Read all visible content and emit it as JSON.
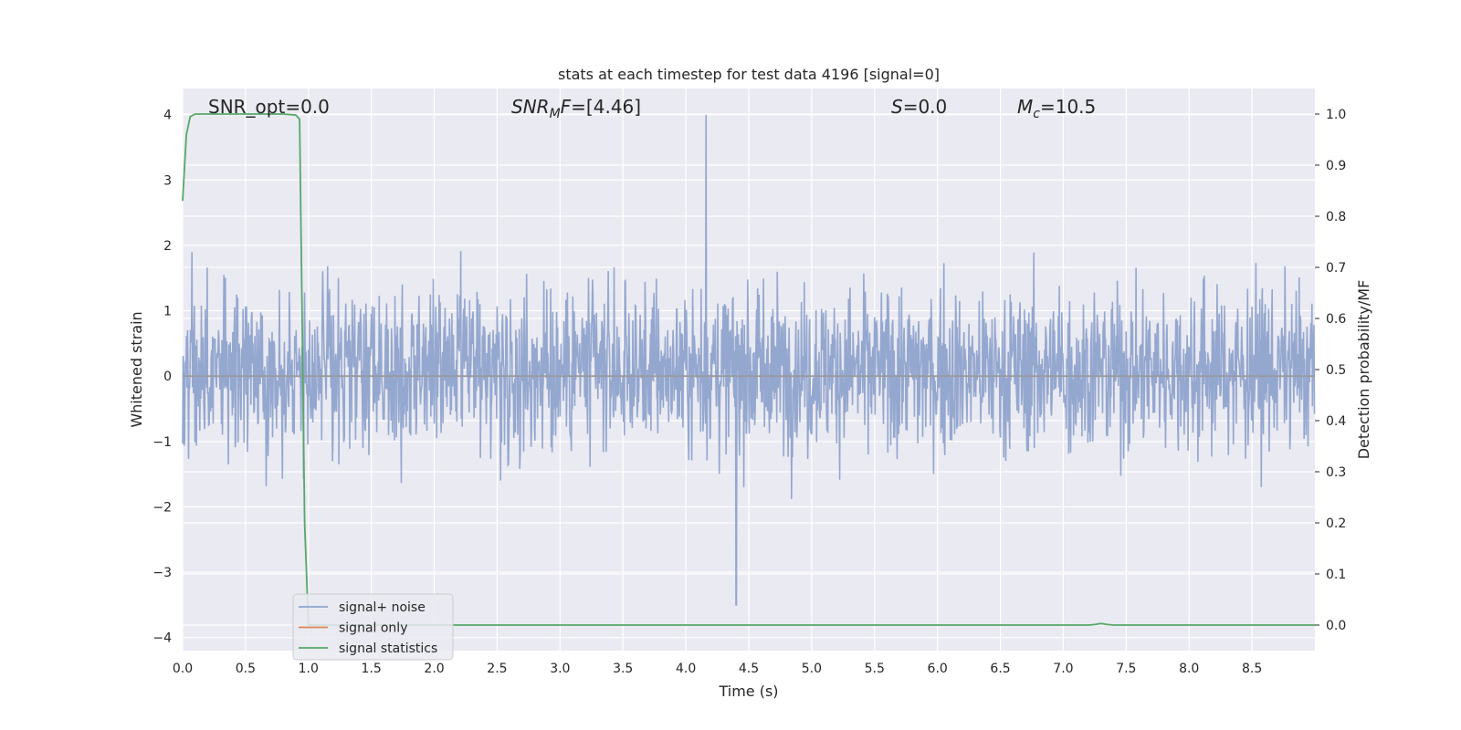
{
  "chart_data": {
    "type": "line",
    "title": "stats at each timestep for test data 4196 [signal=0]",
    "xlabel": "Time (s)",
    "ylabel_left": "Whitened strain",
    "ylabel_right": "Detection probability/MF",
    "xlim": [
      0.0,
      9.0
    ],
    "ylim_left": [
      -4.2,
      4.4
    ],
    "ylim_right": [
      -0.05,
      1.05
    ],
    "x_ticks": [
      "0.0",
      "0.5",
      "1.0",
      "1.5",
      "2.0",
      "2.5",
      "3.0",
      "3.5",
      "4.0",
      "4.5",
      "5.0",
      "5.5",
      "6.0",
      "6.5",
      "7.0",
      "7.5",
      "8.0",
      "8.5"
    ],
    "y_ticks_left": [
      "4",
      "3",
      "2",
      "1",
      "0",
      "−1",
      "−2",
      "−3",
      "−4"
    ],
    "y_ticks_right": [
      "1.0",
      "0.9",
      "0.8",
      "0.7",
      "0.6",
      "0.5",
      "0.4",
      "0.3",
      "0.2",
      "0.1",
      "0.0"
    ],
    "grid": true,
    "annotations": {
      "snr_opt": "SNR_opt=0.0",
      "snr_mf_base": "SNR",
      "snr_mf_sub": "M",
      "snr_mf_rest": "F=[4.46]",
      "s_italic": "S",
      "s_rest": "=0.0",
      "mc_base": "M",
      "mc_sub": "c",
      "mc_rest": "=10.5"
    },
    "legend": {
      "placement": "lower-left",
      "entries": [
        "signal+ noise",
        "signal only",
        "signal statistics"
      ]
    },
    "colors": {
      "signal_noise": "#8fa3cc",
      "signal_only": "#dd8452",
      "signal_statistics": "#55a868",
      "background": "#eaeaf2",
      "grid": "#ffffff"
    },
    "series": [
      {
        "name": "signal+ noise",
        "axis": "left",
        "kind": "noise",
        "sample_rate_hz": 256,
        "typical_range": [
          -2.0,
          2.6
        ],
        "peak_max": 4.0,
        "peak_max_time_s": 4.16,
        "trough_min": -3.5,
        "trough_min_time_s": 4.4
      },
      {
        "name": "signal only",
        "axis": "left",
        "x": [
          0.0,
          9.0
        ],
        "y": [
          0.0,
          0.0
        ]
      },
      {
        "name": "signal statistics",
        "axis": "right",
        "x": [
          0.0,
          0.03,
          0.06,
          0.1,
          0.2,
          0.4,
          0.6,
          0.8,
          0.9,
          0.93,
          0.95,
          0.97,
          1.0,
          7.2,
          7.25,
          7.3,
          7.35,
          7.4,
          9.0
        ],
        "y": [
          0.83,
          0.96,
          0.995,
          1.0,
          1.0,
          1.0,
          1.0,
          1.0,
          0.998,
          0.99,
          0.6,
          0.2,
          0.0,
          0.0,
          0.001,
          0.003,
          0.001,
          0.0,
          0.0
        ]
      }
    ]
  }
}
